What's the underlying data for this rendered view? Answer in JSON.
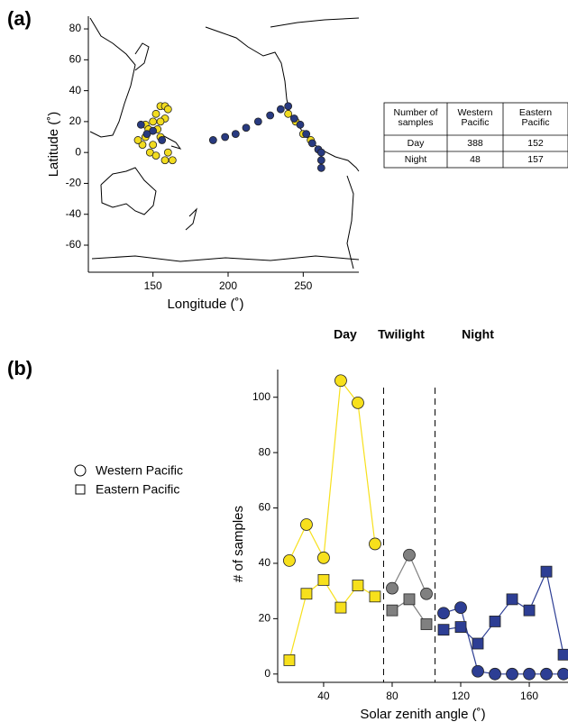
{
  "panel_labels": [
    "(a)",
    "(b)"
  ],
  "table": {
    "header": [
      "Number of samples",
      "Western Pacific",
      "Eastern Pacific"
    ],
    "rows": [
      [
        "Day",
        "388",
        "152"
      ],
      [
        "Night",
        "48",
        "157"
      ]
    ]
  },
  "chart_data": [
    {
      "type": "scatter",
      "x_label": "Longitude (˚)",
      "y_label": "Latitude (˚)",
      "xlim": [
        107,
        287
      ],
      "ylim": [
        -77.5,
        88.2
      ],
      "xticks": [
        150,
        200,
        250
      ],
      "yticks": [
        -60,
        -40,
        -20,
        0,
        20,
        40,
        60,
        80
      ],
      "points": [
        {
          "color": "#f2dc1f",
          "x": [
            145,
            147,
            150,
            152,
            155,
            158,
            160,
            158,
            155,
            150,
            148,
            152,
            158,
            163,
            160,
            143,
            140,
            145,
            153,
            155,
            240,
            245,
            250,
            255
          ],
          "y": [
            18,
            15,
            20,
            25,
            30,
            30,
            28,
            22,
            10,
            5,
            0,
            -2,
            -5,
            -5,
            0,
            5,
            8,
            10,
            15,
            20,
            25,
            20,
            12,
            8
          ]
        },
        {
          "color": "#283a80",
          "x": [
            142,
            146,
            150,
            156,
            190,
            198,
            205,
            212,
            220,
            228,
            235,
            240,
            244,
            248,
            252,
            256,
            260,
            262,
            262,
            262
          ],
          "y": [
            18,
            12,
            14,
            8,
            8,
            10,
            12,
            16,
            20,
            24,
            28,
            30,
            22,
            18,
            12,
            6,
            2,
            0,
            -5,
            -10
          ]
        }
      ]
    },
    {
      "type": "line",
      "x_label": "Solar  zenith angle (˚)",
      "y_label": "# of samples",
      "xlim": [
        13.2,
        182.6
      ],
      "ylim": [
        -3,
        110
      ],
      "xticks": [
        40,
        80,
        120,
        160
      ],
      "yticks": [
        0,
        20,
        40,
        60,
        80,
        100
      ],
      "phases": [
        "Day",
        "Twilight",
        "Night"
      ],
      "phase_colors": [
        "#f7e01c",
        "#808080",
        "#2d3e94"
      ],
      "dividers": [
        75,
        105
      ],
      "x": [
        20,
        30,
        40,
        50,
        60,
        70,
        80,
        90,
        100,
        110,
        120,
        130,
        140,
        150,
        160,
        170,
        180
      ],
      "series": [
        {
          "name": "Western Pacific",
          "marker": "circle",
          "values": [
            41,
            54,
            42,
            106,
            98,
            47,
            31,
            43,
            29,
            22,
            24,
            1,
            0,
            0,
            0,
            0,
            0
          ]
        },
        {
          "name": "Eastern Pacific",
          "marker": "square",
          "values": [
            5,
            29,
            34,
            24,
            32,
            28,
            23,
            27,
            18,
            16,
            17,
            11,
            19,
            27,
            23,
            37,
            7
          ]
        }
      ]
    }
  ]
}
